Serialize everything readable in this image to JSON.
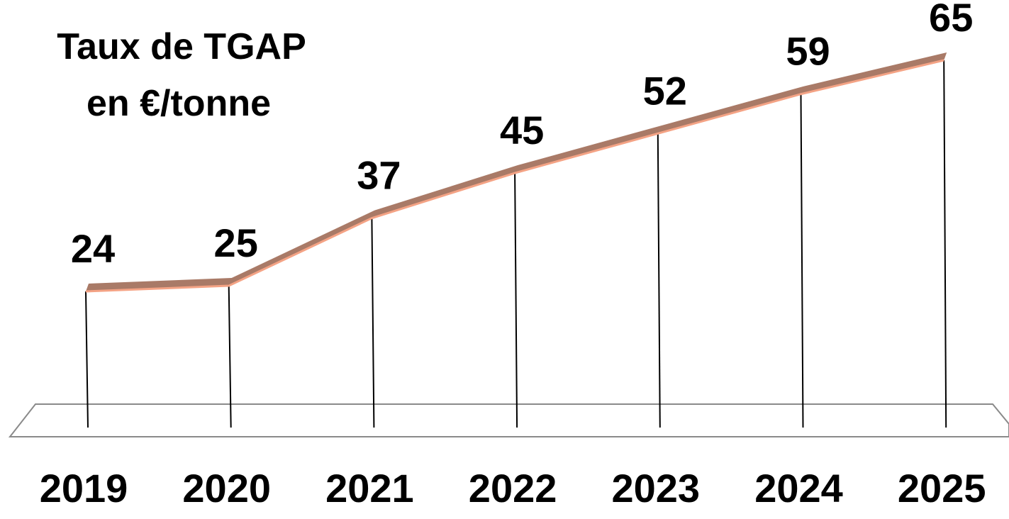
{
  "chart_data": {
    "type": "line",
    "title": [
      "Taux de TGAP",
      "en €/tonne"
    ],
    "xlabel": "",
    "ylabel": "",
    "categories": [
      "2019",
      "2020",
      "2021",
      "2022",
      "2023",
      "2024",
      "2025"
    ],
    "series": [
      {
        "name": "",
        "values": [
          24,
          25,
          37,
          45,
          52,
          59,
          65
        ]
      }
    ],
    "data_labels": [
      "24",
      "25",
      "37",
      "45",
      "52",
      "59",
      "65"
    ],
    "grid": false,
    "legend": "none",
    "colors": {
      "line_top": "#a97a67",
      "line_edge": "#f4a385",
      "drop_line": "#000000",
      "floor": "#8a8a8a"
    }
  }
}
